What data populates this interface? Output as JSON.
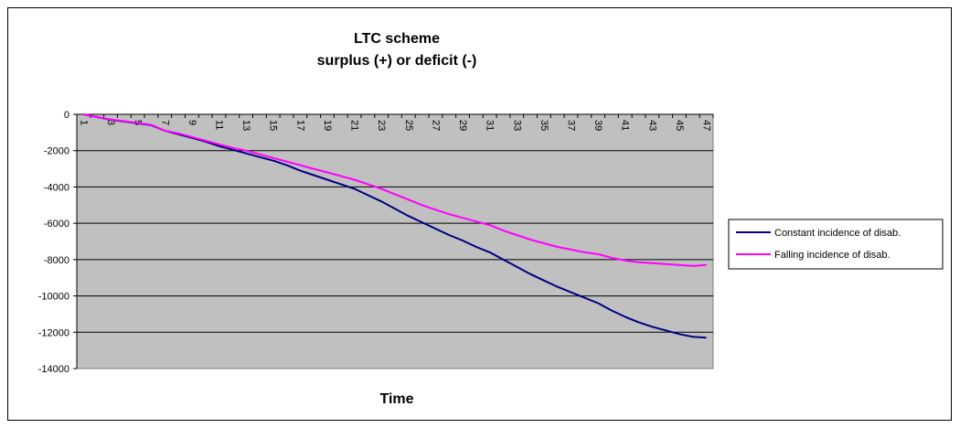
{
  "chart_data": {
    "type": "line",
    "title": "LTC scheme",
    "subtitle": "surplus (+) or deficit (-)",
    "xlabel": "Time",
    "ylabel": "",
    "ylim": [
      -14000,
      0
    ],
    "yticks": [
      0,
      -2000,
      -4000,
      -6000,
      -8000,
      -10000,
      -12000,
      -14000
    ],
    "ytick_labels": [
      "0",
      "-2000",
      "-4000",
      "-6000",
      "-8000",
      "-10000",
      "-12000",
      "-14000"
    ],
    "x": [
      1,
      2,
      3,
      4,
      5,
      6,
      7,
      8,
      9,
      10,
      11,
      12,
      13,
      14,
      15,
      16,
      17,
      18,
      19,
      20,
      21,
      22,
      23,
      24,
      25,
      26,
      27,
      28,
      29,
      30,
      31,
      32,
      33,
      34,
      35,
      36,
      37,
      38,
      39,
      40,
      41,
      42,
      43,
      44,
      45,
      46,
      47
    ],
    "xtick_labels": [
      "1",
      "3",
      "5",
      "7",
      "9",
      "11",
      "13",
      "15",
      "17",
      "19",
      "21",
      "23",
      "25",
      "27",
      "29",
      "31",
      "33",
      "35",
      "37",
      "39",
      "41",
      "43",
      "45",
      "47"
    ],
    "grid": true,
    "plot_background": "#C0C0C0",
    "legend_position": "right",
    "series": [
      {
        "name": "Constant incidence of disab.",
        "color": "#000080",
        "values": [
          0,
          -150,
          -300,
          -400,
          -500,
          -600,
          -900,
          -1100,
          -1300,
          -1500,
          -1750,
          -1950,
          -2150,
          -2350,
          -2550,
          -2800,
          -3100,
          -3350,
          -3600,
          -3850,
          -4100,
          -4450,
          -4800,
          -5200,
          -5600,
          -5950,
          -6300,
          -6650,
          -6950,
          -7300,
          -7600,
          -8000,
          -8400,
          -8800,
          -9150,
          -9500,
          -9800,
          -10100,
          -10400,
          -10800,
          -11150,
          -11450,
          -11700,
          -11900,
          -12100,
          -12250,
          -12300
        ]
      },
      {
        "name": "Falling incidence of disab.",
        "color": "#FF00FF",
        "values": [
          0,
          -150,
          -280,
          -380,
          -480,
          -580,
          -900,
          -1050,
          -1250,
          -1450,
          -1650,
          -1850,
          -2000,
          -2200,
          -2400,
          -2600,
          -2800,
          -3000,
          -3200,
          -3400,
          -3600,
          -3850,
          -4100,
          -4400,
          -4700,
          -5000,
          -5250,
          -5500,
          -5700,
          -5900,
          -6100,
          -6400,
          -6650,
          -6900,
          -7100,
          -7300,
          -7450,
          -7600,
          -7700,
          -7900,
          -8050,
          -8150,
          -8200,
          -8250,
          -8300,
          -8350,
          -8300
        ]
      }
    ]
  }
}
